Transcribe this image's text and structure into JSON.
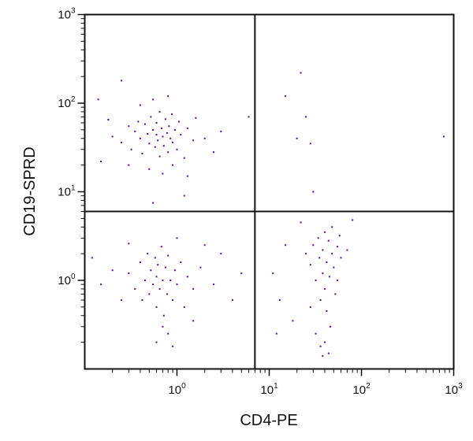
{
  "chart_data": {
    "type": "scatter",
    "title": "",
    "xlabel": "CD4-PE",
    "ylabel": "CD19-SPRD",
    "x_scale": "log",
    "y_scale": "log",
    "xlim": [
      0.1,
      1000
    ],
    "ylim": [
      0.1,
      1000
    ],
    "x_ticks": [
      {
        "value": 1,
        "base": "10",
        "exp": "0"
      },
      {
        "value": 10,
        "base": "10",
        "exp": "1"
      },
      {
        "value": 100,
        "base": "10",
        "exp": "2"
      },
      {
        "value": 1000,
        "base": "10",
        "exp": "3"
      }
    ],
    "y_ticks": [
      {
        "value": 1,
        "base": "10",
        "exp": "0"
      },
      {
        "value": 10,
        "base": "10",
        "exp": "1"
      },
      {
        "value": 100,
        "base": "10",
        "exp": "2"
      },
      {
        "value": 1000,
        "base": "10",
        "exp": "3"
      }
    ],
    "gates": {
      "x": 7,
      "y": 6
    },
    "grid": false,
    "legend": "none",
    "point_color": "#5a108f",
    "series": [
      {
        "population": "upper-left",
        "points": [
          [
            0.2,
            42
          ],
          [
            0.25,
            36
          ],
          [
            0.3,
            55
          ],
          [
            0.32,
            30
          ],
          [
            0.35,
            48
          ],
          [
            0.38,
            62
          ],
          [
            0.4,
            40
          ],
          [
            0.42,
            27
          ],
          [
            0.45,
            58
          ],
          [
            0.48,
            45
          ],
          [
            0.5,
            35
          ],
          [
            0.52,
            70
          ],
          [
            0.55,
            50
          ],
          [
            0.58,
            32
          ],
          [
            0.6,
            44
          ],
          [
            0.6,
            60
          ],
          [
            0.62,
            38
          ],
          [
            0.65,
            80
          ],
          [
            0.65,
            25
          ],
          [
            0.68,
            52
          ],
          [
            0.7,
            42
          ],
          [
            0.72,
            33
          ],
          [
            0.75,
            66
          ],
          [
            0.78,
            46
          ],
          [
            0.8,
            28
          ],
          [
            0.82,
            55
          ],
          [
            0.85,
            40
          ],
          [
            0.88,
            75
          ],
          [
            0.9,
            36
          ],
          [
            0.95,
            50
          ],
          [
            1.0,
            30
          ],
          [
            1.05,
            62
          ],
          [
            1.1,
            44
          ],
          [
            1.2,
            24
          ],
          [
            1.3,
            52
          ],
          [
            1.5,
            38
          ],
          [
            0.15,
            22
          ],
          [
            0.18,
            65
          ],
          [
            0.3,
            20
          ],
          [
            0.4,
            95
          ],
          [
            0.5,
            18
          ],
          [
            0.55,
            110
          ],
          [
            0.7,
            16
          ],
          [
            0.8,
            120
          ],
          [
            0.9,
            20
          ],
          [
            1.3,
            15
          ],
          [
            1.6,
            68
          ],
          [
            2.0,
            40
          ],
          [
            2.5,
            28
          ],
          [
            3.0,
            48
          ],
          [
            0.14,
            110
          ],
          [
            0.25,
            180
          ],
          [
            0.55,
            7.5
          ],
          [
            1.2,
            9
          ],
          [
            6.0,
            70
          ]
        ]
      },
      {
        "population": "upper-right",
        "points": [
          [
            22,
            220
          ],
          [
            25,
            70
          ],
          [
            20,
            40
          ],
          [
            28,
            35
          ],
          [
            30,
            10
          ],
          [
            780,
            42
          ],
          [
            15,
            120
          ]
        ]
      },
      {
        "population": "lower-left",
        "points": [
          [
            0.3,
            1.2
          ],
          [
            0.35,
            0.8
          ],
          [
            0.4,
            1.6
          ],
          [
            0.42,
            0.6
          ],
          [
            0.45,
            1.0
          ],
          [
            0.48,
            2.0
          ],
          [
            0.5,
            0.7
          ],
          [
            0.52,
            1.3
          ],
          [
            0.55,
            0.9
          ],
          [
            0.58,
            1.8
          ],
          [
            0.6,
            0.5
          ],
          [
            0.6,
            1.1
          ],
          [
            0.62,
            1.5
          ],
          [
            0.65,
            0.8
          ],
          [
            0.68,
            2.4
          ],
          [
            0.7,
            1.0
          ],
          [
            0.72,
            0.4
          ],
          [
            0.75,
            1.4
          ],
          [
            0.78,
            0.7
          ],
          [
            0.8,
            1.9
          ],
          [
            0.85,
            1.0
          ],
          [
            0.9,
            0.6
          ],
          [
            0.95,
            1.3
          ],
          [
            1.0,
            0.9
          ],
          [
            1.1,
            1.6
          ],
          [
            1.2,
            0.5
          ],
          [
            1.3,
            1.1
          ],
          [
            1.5,
            0.8
          ],
          [
            0.2,
            1.3
          ],
          [
            0.25,
            0.6
          ],
          [
            0.3,
            2.6
          ],
          [
            0.7,
            0.3
          ],
          [
            0.8,
            0.25
          ],
          [
            1.0,
            3.0
          ],
          [
            1.8,
            1.4
          ],
          [
            2.5,
            0.9
          ],
          [
            3.0,
            2.0
          ],
          [
            4.0,
            0.6
          ],
          [
            5.0,
            1.2
          ],
          [
            0.15,
            0.9
          ],
          [
            0.12,
            1.8
          ],
          [
            0.9,
            0.18
          ],
          [
            0.6,
            0.2
          ],
          [
            1.5,
            0.35
          ],
          [
            2.0,
            2.5
          ]
        ]
      },
      {
        "population": "lower-right",
        "points": [
          [
            28,
            1.5
          ],
          [
            30,
            2.5
          ],
          [
            32,
            1.0
          ],
          [
            34,
            3.0
          ],
          [
            35,
            1.8
          ],
          [
            36,
            0.6
          ],
          [
            38,
            2.2
          ],
          [
            38,
            1.2
          ],
          [
            40,
            0.8
          ],
          [
            40,
            3.5
          ],
          [
            42,
            1.6
          ],
          [
            42,
            0.45
          ],
          [
            44,
            2.8
          ],
          [
            45,
            1.1
          ],
          [
            46,
            0.3
          ],
          [
            48,
            2.0
          ],
          [
            48,
            4.0
          ],
          [
            50,
            1.4
          ],
          [
            52,
            0.7
          ],
          [
            55,
            2.4
          ],
          [
            58,
            3.2
          ],
          [
            32,
            0.25
          ],
          [
            36,
            0.18
          ],
          [
            38,
            0.14
          ],
          [
            40,
            0.2
          ],
          [
            44,
            0.15
          ],
          [
            28,
            0.5
          ],
          [
            25,
            2.0
          ],
          [
            55,
            1.0
          ],
          [
            60,
            1.8
          ],
          [
            11,
            1.2
          ],
          [
            13,
            0.6
          ],
          [
            15,
            2.5
          ],
          [
            18,
            0.35
          ],
          [
            12,
            0.25
          ],
          [
            22,
            4.5
          ],
          [
            70,
            2.2
          ],
          [
            80,
            4.8
          ]
        ]
      }
    ]
  }
}
